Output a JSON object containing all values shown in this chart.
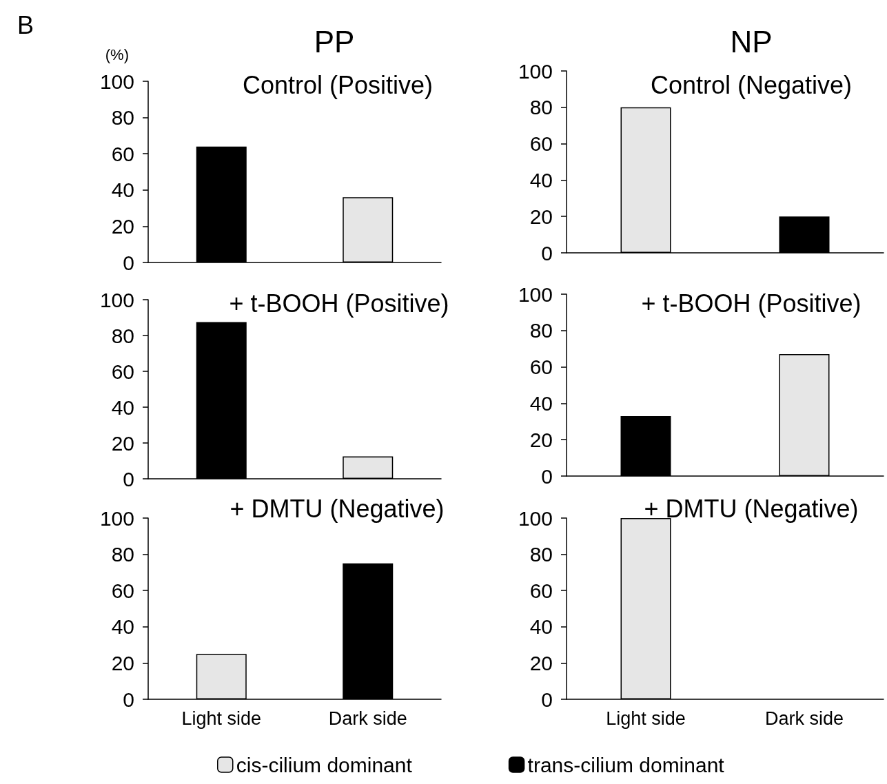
{
  "chart_data": [
    {
      "type": "bar",
      "title": "Control (Positive)",
      "ylabel": "(%)",
      "annotations": [
        "B",
        "PP"
      ],
      "categories": [
        null,
        null
      ],
      "ylim": [
        0,
        100
      ],
      "yticks": [
        0,
        20,
        40,
        60,
        80,
        100
      ],
      "tick_labels": "y",
      "grid": false,
      "legend": false,
      "series": [
        {
          "color": "#e6e6e6",
          "values": [
            null,
            36
          ]
        },
        {
          "color": "#000000",
          "values": [
            64,
            null
          ]
        }
      ]
    },
    {
      "type": "bar",
      "title": "Control (Negative)",
      "annotations": [
        "NP"
      ],
      "categories": [
        null,
        null
      ],
      "ylim": [
        0,
        100
      ],
      "yticks": [
        0,
        20,
        40,
        60,
        80,
        100
      ],
      "tick_labels": "y",
      "grid": false,
      "legend": false,
      "series": [
        {
          "color": "#e6e6e6",
          "values": [
            80,
            null
          ]
        },
        {
          "color": "#000000",
          "values": [
            null,
            20
          ]
        }
      ]
    },
    {
      "type": "bar",
      "title": "+ t-BOOH (Positive)",
      "categories": [
        null,
        null
      ],
      "ylim": [
        0,
        100
      ],
      "yticks": [
        0,
        20,
        40,
        60,
        80,
        100
      ],
      "tick_labels": "y",
      "grid": false,
      "legend": false,
      "series": [
        {
          "color": "#e6e6e6",
          "values": [
            null,
            12.5
          ]
        },
        {
          "color": "#000000",
          "values": [
            87.5,
            null
          ]
        }
      ]
    },
    {
      "type": "bar",
      "title": "+ t-BOOH (Positive)",
      "categories": [
        null,
        null
      ],
      "ylim": [
        0,
        100
      ],
      "yticks": [
        0,
        20,
        40,
        60,
        80,
        100
      ],
      "tick_labels": "y",
      "grid": false,
      "legend": false,
      "series": [
        {
          "color": "#e6e6e6",
          "values": [
            null,
            67
          ]
        },
        {
          "color": "#000000",
          "values": [
            33,
            null
          ]
        }
      ]
    },
    {
      "type": "bar",
      "title": "+ DMTU (Negative)",
      "categories": [
        "Light side",
        "Dark side"
      ],
      "ylim": [
        0,
        100
      ],
      "yticks": [
        0,
        20,
        40,
        60,
        80,
        100
      ],
      "grid": false,
      "legend": "bottom",
      "series": [
        {
          "name": "cis-cilium dominant",
          "color": "#e6e6e6",
          "values": [
            25,
            null
          ]
        },
        {
          "name": "trans-cilium dominant",
          "color": "#000000",
          "values": [
            null,
            75
          ]
        }
      ]
    },
    {
      "type": "bar",
      "title": "+ DMTU (Negative)",
      "categories": [
        "Light side",
        "Dark side"
      ],
      "ylim": [
        0,
        100
      ],
      "yticks": [
        0,
        20,
        40,
        60,
        80,
        100
      ],
      "grid": false,
      "legend": false,
      "series": [
        {
          "color": "#e6e6e6",
          "values": [
            100,
            null
          ]
        },
        {
          "color": "#000000",
          "values": [
            null,
            null
          ]
        }
      ]
    }
  ]
}
